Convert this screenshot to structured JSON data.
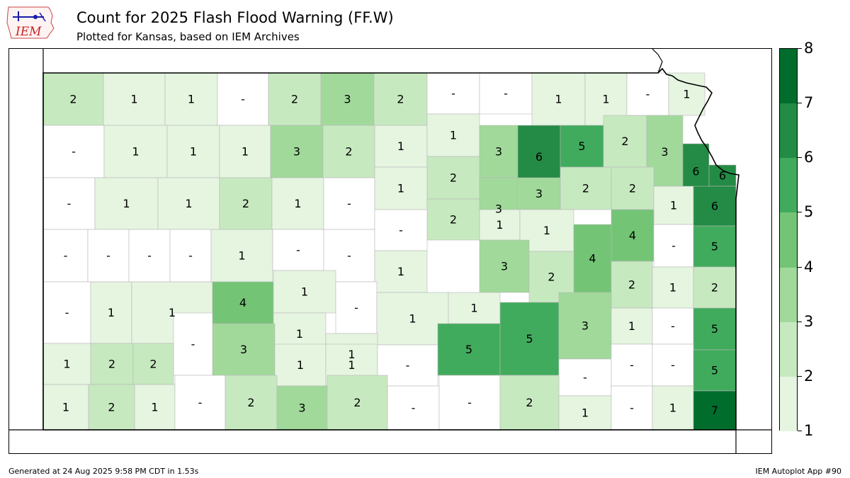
{
  "header": {
    "logo_text": "IEM",
    "title": "Count for 2025 Flash Flood Warning (FF.W)",
    "subtitle": "Plotted for Kansas, based on IEM Archives"
  },
  "map": {
    "state": "Kansas",
    "no_data_label": "-",
    "counties": [
      {
        "id": "cheyenne",
        "count": 2
      },
      {
        "id": "rawlins",
        "count": 1
      },
      {
        "id": "decatur",
        "count": 1
      },
      {
        "id": "norton",
        "count": null
      },
      {
        "id": "phillips",
        "count": 2
      },
      {
        "id": "smith",
        "count": 3
      },
      {
        "id": "jewell",
        "count": 2
      },
      {
        "id": "republic",
        "count": null
      },
      {
        "id": "washington",
        "count": null
      },
      {
        "id": "marshall",
        "count": 1
      },
      {
        "id": "nemaha",
        "count": 1
      },
      {
        "id": "brown",
        "count": null
      },
      {
        "id": "doniphan",
        "count": 1
      },
      {
        "id": "sherman",
        "count": null
      },
      {
        "id": "thomas",
        "count": 1
      },
      {
        "id": "sheridan",
        "count": 1
      },
      {
        "id": "graham",
        "count": 1
      },
      {
        "id": "rooks",
        "count": 3
      },
      {
        "id": "osborne",
        "count": 2
      },
      {
        "id": "mitchell",
        "count": 1
      },
      {
        "id": "cloud",
        "count": 1
      },
      {
        "id": "clay",
        "count": 3
      },
      {
        "id": "pottawatomie",
        "count": 6
      },
      {
        "id": "jackson",
        "count": 5
      },
      {
        "id": "atchison",
        "count": 2
      },
      {
        "id": "jefferson",
        "count": 3
      },
      {
        "id": "leavenworth",
        "count": 6
      },
      {
        "id": "wallace",
        "count": null
      },
      {
        "id": "logan",
        "count": 1
      },
      {
        "id": "gove",
        "count": 1
      },
      {
        "id": "trego",
        "count": 2
      },
      {
        "id": "ellis",
        "count": 1
      },
      {
        "id": "russell",
        "count": null
      },
      {
        "id": "lincoln",
        "count": 1
      },
      {
        "id": "ottawa",
        "count": 2
      },
      {
        "id": "dickinson",
        "count": 1
      },
      {
        "id": "riley",
        "count": 3
      },
      {
        "id": "geary",
        "count": 3
      },
      {
        "id": "wabaunsee",
        "count": 2
      },
      {
        "id": "shawnee",
        "count": 2
      },
      {
        "id": "douglas",
        "count": 1
      },
      {
        "id": "wyandotte",
        "count": 6
      },
      {
        "id": "johnson",
        "count": 6
      },
      {
        "id": "saline",
        "count": 2
      },
      {
        "id": "morris",
        "count": 1
      },
      {
        "id": "osage",
        "count": 4
      },
      {
        "id": "greeley",
        "count": null
      },
      {
        "id": "wichita",
        "count": null
      },
      {
        "id": "scott",
        "count": null
      },
      {
        "id": "lane",
        "count": null
      },
      {
        "id": "ness",
        "count": 1
      },
      {
        "id": "rush",
        "count": null
      },
      {
        "id": "barton",
        "count": null
      },
      {
        "id": "ellsworth",
        "count": null
      },
      {
        "id": "mcpherson",
        "count": 1
      },
      {
        "id": "marion",
        "count": 3
      },
      {
        "id": "chase",
        "count": 4
      },
      {
        "id": "franklin",
        "count": null
      },
      {
        "id": "miami",
        "count": 5
      },
      {
        "id": "hamilton",
        "count": null
      },
      {
        "id": "kearny",
        "count": 1
      },
      {
        "id": "finney",
        "count": 1
      },
      {
        "id": "hodgeman",
        "count": 4
      },
      {
        "id": "pawnee",
        "count": 1
      },
      {
        "id": "stafford",
        "count": 1
      },
      {
        "id": "rice",
        "count": null
      },
      {
        "id": "reno",
        "count": 1
      },
      {
        "id": "harvey",
        "count": 1
      },
      {
        "id": "lyon",
        "count": 2
      },
      {
        "id": "coffey",
        "count": 2
      },
      {
        "id": "anderson",
        "count": 1
      },
      {
        "id": "linn",
        "count": 2
      },
      {
        "id": "ford",
        "count": 3
      },
      {
        "id": "gray",
        "count": null
      },
      {
        "id": "edwards",
        "count": 1
      },
      {
        "id": "sedgwick",
        "count": 5
      },
      {
        "id": "butler",
        "count": 5
      },
      {
        "id": "greenwood",
        "count": 3
      },
      {
        "id": "woodson",
        "count": 1
      },
      {
        "id": "allen",
        "count": null
      },
      {
        "id": "bourbon",
        "count": 5
      },
      {
        "id": "stanton",
        "count": 1
      },
      {
        "id": "grant",
        "count": 2
      },
      {
        "id": "haskell",
        "count": 2
      },
      {
        "id": "pratt",
        "count": 1
      },
      {
        "id": "kiowa",
        "count": 1
      },
      {
        "id": "kingman",
        "count": null
      },
      {
        "id": "elk",
        "count": null
      },
      {
        "id": "wilson",
        "count": null
      },
      {
        "id": "neosho",
        "count": null
      },
      {
        "id": "crawford",
        "count": 5
      },
      {
        "id": "morton",
        "count": 1
      },
      {
        "id": "stevens",
        "count": 2
      },
      {
        "id": "seward",
        "count": 1
      },
      {
        "id": "meade",
        "count": null
      },
      {
        "id": "clark",
        "count": 2
      },
      {
        "id": "comanche",
        "count": 3
      },
      {
        "id": "barber",
        "count": 2
      },
      {
        "id": "harper",
        "count": null
      },
      {
        "id": "sumner",
        "count": null
      },
      {
        "id": "cowley",
        "count": 2
      },
      {
        "id": "chautauqua",
        "count": 1
      },
      {
        "id": "montgomery",
        "count": null
      },
      {
        "id": "labette",
        "count": 1
      },
      {
        "id": "cherokee",
        "count": 7
      }
    ]
  },
  "legend": {
    "colors": [
      "#e5f5e0",
      "#c7e9c0",
      "#a1d99b",
      "#74c476",
      "#41ab5d",
      "#238b45",
      "#006d2c"
    ],
    "tick_labels": [
      "1",
      "2",
      "3",
      "4",
      "5",
      "6",
      "7",
      "8"
    ]
  },
  "footer": {
    "generated": "Generated at 24 Aug 2025 9:58 PM CDT in 1.53s",
    "app": "IEM Autoplot App #90"
  }
}
